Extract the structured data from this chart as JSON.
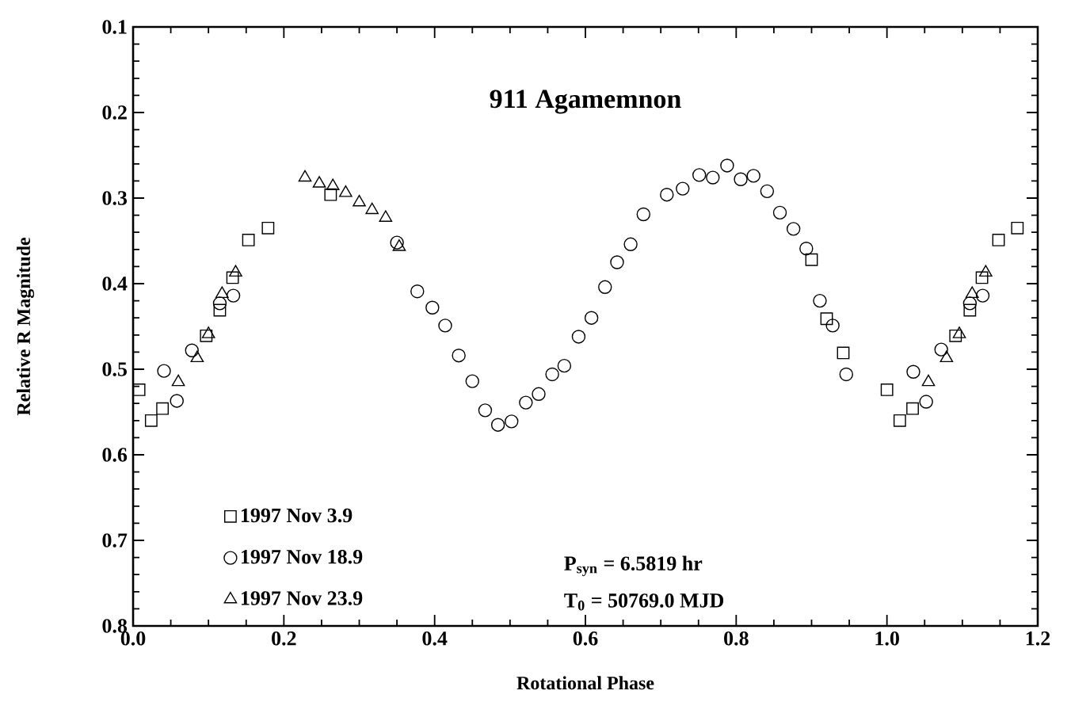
{
  "chart_data": {
    "type": "scatter",
    "title": "911 Agamemnon",
    "xlabel": "Rotational Phase",
    "ylabel": "Relative R Magnitude",
    "xlim": [
      0,
      1.2
    ],
    "ylim": [
      0.8,
      0.1
    ],
    "xticks": [
      {
        "value": 0,
        "label": "0.0"
      },
      0.2,
      0.4,
      0.6,
      0.8,
      {
        "value": 1,
        "label": "1.0"
      },
      1.2
    ],
    "yticks": [
      0.1,
      0.2,
      0.3,
      0.4,
      0.5,
      0.6,
      0.7,
      0.8
    ],
    "legend": "bottom left",
    "grid": false,
    "annotations": [
      "P$_{syn}$ = 6.5819 hr",
      "T$_{0}$ = 50769.0 MJD"
    ],
    "series": [
      {
        "name": "1997 Nov 3.9",
        "color": "#000000",
        "marker": "square",
        "x": [
          0.008,
          0.024,
          0.039,
          0.097,
          0.115,
          0.132,
          0.153,
          0.179,
          0.262,
          0.9,
          0.92,
          0.942,
          1.0,
          1.017,
          1.034,
          1.091,
          1.11,
          1.126,
          1.148,
          1.173
        ],
        "values": [
          0.524,
          0.56,
          0.546,
          0.461,
          0.431,
          0.393,
          0.349,
          0.335,
          0.296,
          0.372,
          0.441,
          0.481,
          0.524,
          0.56,
          0.546,
          0.461,
          0.431,
          0.393,
          0.349,
          0.335
        ]
      },
      {
        "name": "1997 Nov 18.9",
        "color": "#000000",
        "marker": "circle",
        "x": [
          0.041,
          0.058,
          0.078,
          0.115,
          0.133,
          0.35,
          0.377,
          0.397,
          0.414,
          0.432,
          0.45,
          0.467,
          0.484,
          0.502,
          0.521,
          0.538,
          0.556,
          0.572,
          0.591,
          0.608,
          0.626,
          0.642,
          0.66,
          0.677,
          0.708,
          0.729,
          0.751,
          0.769,
          0.788,
          0.806,
          0.823,
          0.841,
          0.858,
          0.876,
          0.893,
          0.911,
          0.928,
          0.946,
          1.035,
          1.052,
          1.072,
          1.11,
          1.127
        ],
        "values": [
          0.502,
          0.537,
          0.478,
          0.423,
          0.414,
          0.352,
          0.409,
          0.428,
          0.449,
          0.484,
          0.514,
          0.548,
          0.565,
          0.561,
          0.539,
          0.529,
          0.506,
          0.496,
          0.462,
          0.44,
          0.404,
          0.375,
          0.354,
          0.319,
          0.296,
          0.289,
          0.273,
          0.276,
          0.262,
          0.278,
          0.274,
          0.292,
          0.317,
          0.336,
          0.359,
          0.42,
          0.449,
          0.506,
          0.503,
          0.538,
          0.477,
          0.423,
          0.414
        ]
      },
      {
        "name": "1997 Nov 23.9",
        "color": "#000000",
        "marker": "triangle",
        "x": [
          0.06,
          0.085,
          0.1,
          0.118,
          0.136,
          0.228,
          0.247,
          0.265,
          0.282,
          0.3,
          0.317,
          0.335,
          0.353,
          1.055,
          1.079,
          1.096,
          1.113,
          1.131
        ],
        "values": [
          0.515,
          0.487,
          0.459,
          0.412,
          0.387,
          0.276,
          0.283,
          0.286,
          0.294,
          0.305,
          0.314,
          0.323,
          0.357,
          0.515,
          0.487,
          0.459,
          0.412,
          0.387
        ]
      }
    ]
  }
}
